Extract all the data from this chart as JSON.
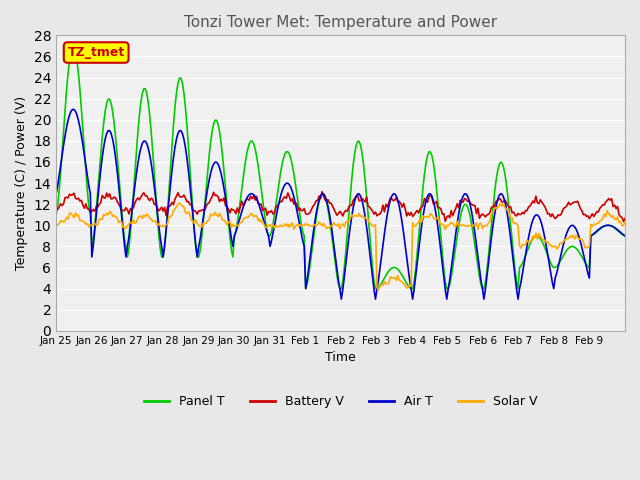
{
  "title": "Tonzi Tower Met: Temperature and Power",
  "xlabel": "Time",
  "ylabel": "Temperature (C) / Power (V)",
  "ylim": [
    0,
    28
  ],
  "yticks": [
    0,
    2,
    4,
    6,
    8,
    10,
    12,
    14,
    16,
    18,
    20,
    22,
    24,
    26,
    28
  ],
  "xtick_labels": [
    "Jan 25",
    "Jan 26",
    "Jan 27",
    "Jan 28",
    "Jan 29",
    "Jan 30",
    "Jan 31",
    "Feb 1",
    "Feb 2",
    "Feb 3",
    "Feb 4",
    "Feb 5",
    "Feb 6",
    "Feb 7",
    "Feb 8",
    "Feb 9"
  ],
  "n_xticks": 16,
  "legend_labels": [
    "Panel T",
    "Battery V",
    "Air T",
    "Solar V"
  ],
  "legend_colors": [
    "#00cc00",
    "#cc0000",
    "#0000cc",
    "#ffaa00"
  ],
  "bg_color": "#e8e8e8",
  "plot_bg_color": "#f0f0f0",
  "annotation_text": "TZ_tmet",
  "annotation_bg": "#ffff00",
  "annotation_border": "#cc0000",
  "panel_peaks": [
    27,
    22,
    23,
    24,
    20,
    18,
    17,
    13,
    18,
    6,
    17,
    12,
    16,
    9,
    8,
    10
  ],
  "panel_troughs": [
    11,
    8,
    7,
    7,
    7,
    9,
    9,
    4,
    4,
    4,
    4,
    4,
    4,
    6,
    6,
    9
  ],
  "air_peaks": [
    21,
    19,
    18,
    19,
    16,
    13,
    14,
    13,
    13,
    13,
    13,
    13,
    13,
    11,
    10,
    10
  ],
  "air_troughs": [
    13,
    7,
    8,
    7,
    8,
    9,
    8,
    4,
    3,
    4,
    3,
    4,
    3,
    4,
    5,
    9
  ],
  "solar_peaks": [
    11,
    11,
    11,
    12,
    11,
    11,
    10,
    10,
    11,
    5,
    11,
    10,
    12,
    9,
    9,
    11
  ],
  "solar_troughs": [
    10,
    10,
    10,
    10,
    10,
    10,
    10,
    10,
    10,
    4,
    10,
    10,
    10,
    8,
    8,
    10
  ]
}
